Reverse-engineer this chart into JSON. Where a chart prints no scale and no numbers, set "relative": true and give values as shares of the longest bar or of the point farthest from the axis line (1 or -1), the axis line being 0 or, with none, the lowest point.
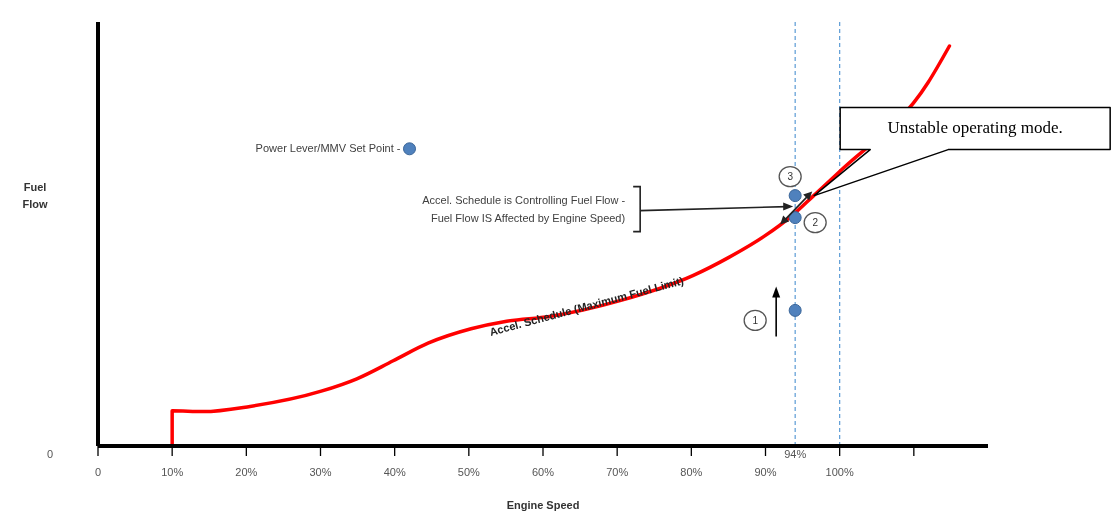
{
  "chart_data": {
    "type": "line",
    "xlabel": "Engine Speed",
    "ylabel": "Fuel\nFlow",
    "relative": true,
    "xlim": [
      0,
      120
    ],
    "xticks": [
      0,
      {
        "value": 10,
        "label": "10%"
      },
      {
        "value": 20,
        "label": "20%"
      },
      {
        "value": 30,
        "label": "30%"
      },
      {
        "value": 40,
        "label": "40%"
      },
      {
        "value": 50,
        "label": "50%"
      },
      {
        "value": 60,
        "label": "60%"
      },
      {
        "value": 70,
        "label": "70%"
      },
      {
        "value": 80,
        "label": "80%"
      },
      {
        "value": 90,
        "label": "90%"
      },
      {
        "value": 100,
        "label": "100%"
      },
      {
        "value": 110,
        "label": null
      }
    ],
    "grid": false,
    "legend": false,
    "series": [
      {
        "color": "#ff0000",
        "marker": "none",
        "line_style": "solid",
        "x": [
          10,
          10,
          14.2,
          20.5,
          30.1,
          34.9,
          39.8,
          44.5,
          50.3,
          55.1,
          60.9,
          70.5,
          80.2,
          85,
          89.8,
          93.7,
          96.5,
          100.4,
          104.2,
          109,
          111.9,
          114.8
        ],
        "values": [
          0,
          0.088,
          0.086,
          0.099,
          0.137,
          0.168,
          0.213,
          0.257,
          0.293,
          0.312,
          0.324,
          0.364,
          0.426,
          0.471,
          0.524,
          0.578,
          0.626,
          0.693,
          null,
          null,
          0.908,
          1
        ]
      },
      {
        "type": "scatter",
        "color": "#4f81bd",
        "marker": "circle",
        "x": [
          42,
          94,
          94,
          94
        ],
        "values": [
          0.743,
          0.339,
          0.571,
          0.626
        ]
      }
    ],
    "ref_lines": [
      {
        "axis": "x",
        "value": 94,
        "label": "94%",
        "color": "#5b9bd5",
        "line_style": "dashed"
      },
      {
        "axis": "x",
        "value": 100,
        "color": "#5b9bd5",
        "line_style": "dashed"
      }
    ],
    "annotations": [
      {
        "text": "Power Lever/MMV Set Point -",
        "x": 42,
        "y": 0.743
      },
      {
        "text": "Accel. Schedule (Maximum Fuel Limit)",
        "x": 66,
        "y": 0.34
      },
      "Accel. Schedule is Controlling Fuel Flow -\nFuel Flow IS Affected by Engine Speed)",
      "Unstable operating mode.",
      "1",
      {
        "text": "2",
        "x": 94,
        "y": 0.571
      },
      {
        "text": "3",
        "x": 94,
        "y": 0.626
      },
      "0"
    ]
  }
}
